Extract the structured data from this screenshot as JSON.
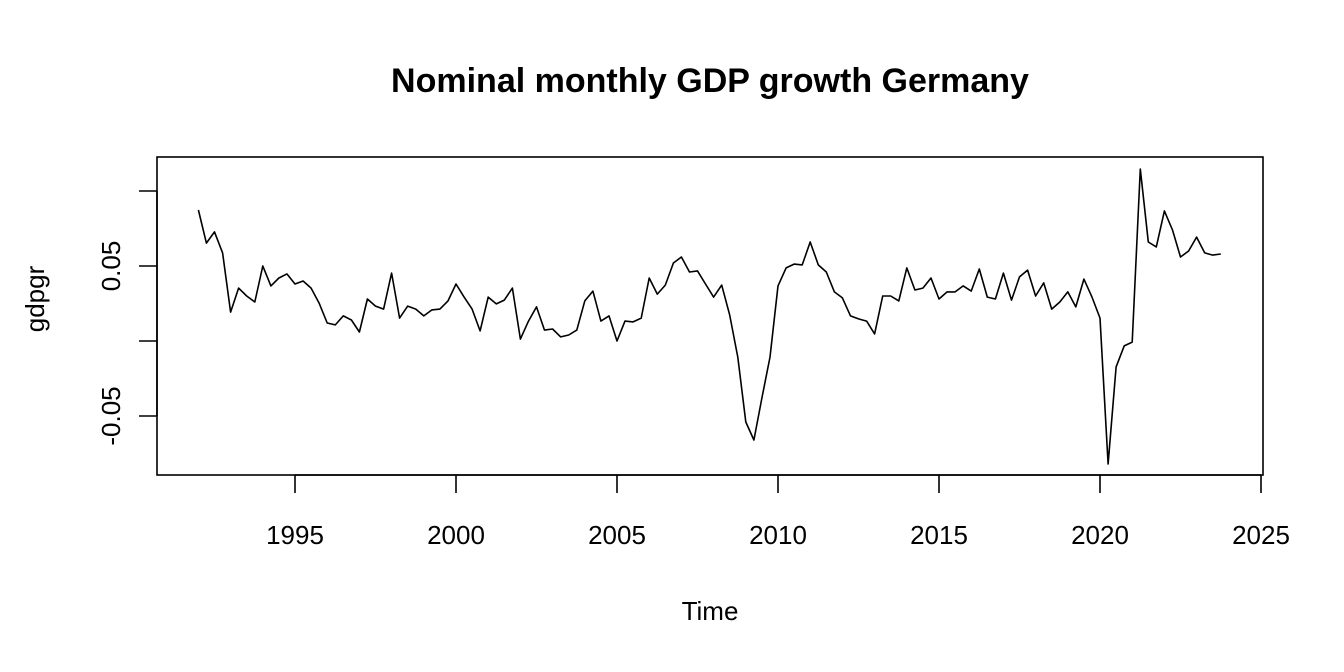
{
  "chart_data": {
    "type": "line",
    "title": "Nominal monthly GDP growth Germany",
    "xlabel": "Time",
    "ylabel": "gdpgr",
    "xlim": [
      1991.0,
      2025.0
    ],
    "ylim": [
      -0.089,
      0.123
    ],
    "x_ticks": [
      1995,
      2000,
      2005,
      2010,
      2015,
      2020,
      2025
    ],
    "x_tick_labels": [
      "1995",
      "2000",
      "2005",
      "2010",
      "2015",
      "2020",
      "2025"
    ],
    "y_ticks": [
      -0.05,
      0.0,
      0.05,
      0.1
    ],
    "y_tick_labels": [
      "-0.05",
      "",
      "0.05",
      ""
    ],
    "grid": false,
    "legend": null,
    "x_start": 1992.0,
    "x_step": 0.25,
    "series": [
      {
        "name": "gdpgr",
        "color": "#000000",
        "values": [
          0.0873,
          0.0653,
          0.0727,
          0.0587,
          0.0193,
          0.0353,
          0.03,
          0.026,
          0.05,
          0.0367,
          0.042,
          0.0447,
          0.038,
          0.04,
          0.0353,
          0.0253,
          0.012,
          0.0107,
          0.0167,
          0.014,
          0.006,
          0.028,
          0.0233,
          0.0213,
          0.0453,
          0.0153,
          0.0233,
          0.0213,
          0.0167,
          0.0207,
          0.0213,
          0.0267,
          0.038,
          0.0293,
          0.0213,
          0.0067,
          0.0293,
          0.0247,
          0.0273,
          0.0353,
          0.0013,
          0.0133,
          0.0227,
          0.0073,
          0.008,
          0.0027,
          0.004,
          0.0073,
          0.0267,
          0.0333,
          0.0133,
          0.0167,
          0.0,
          0.0133,
          0.0127,
          0.0153,
          0.042,
          0.0313,
          0.0373,
          0.052,
          0.056,
          0.046,
          0.0467,
          0.038,
          0.0293,
          0.0373,
          0.0173,
          -0.0107,
          -0.054,
          -0.066,
          -0.038,
          -0.0107,
          0.0367,
          0.0487,
          0.0513,
          0.0507,
          0.066,
          0.0507,
          0.046,
          0.0327,
          0.0287,
          0.0167,
          0.0147,
          0.0133,
          0.0047,
          0.03,
          0.03,
          0.0267,
          0.0487,
          0.034,
          0.0353,
          0.042,
          0.028,
          0.0327,
          0.0327,
          0.0367,
          0.0333,
          0.048,
          0.0293,
          0.028,
          0.0453,
          0.0273,
          0.0427,
          0.0473,
          0.03,
          0.0387,
          0.0213,
          0.026,
          0.0327,
          0.0227,
          0.0413,
          0.0293,
          0.0153,
          -0.082,
          -0.0173,
          -0.0033,
          -0.0007,
          0.1147,
          0.066,
          0.0627,
          0.0867,
          0.074,
          0.056,
          0.06,
          0.0693,
          0.0587,
          0.0573,
          0.058
        ]
      }
    ]
  }
}
